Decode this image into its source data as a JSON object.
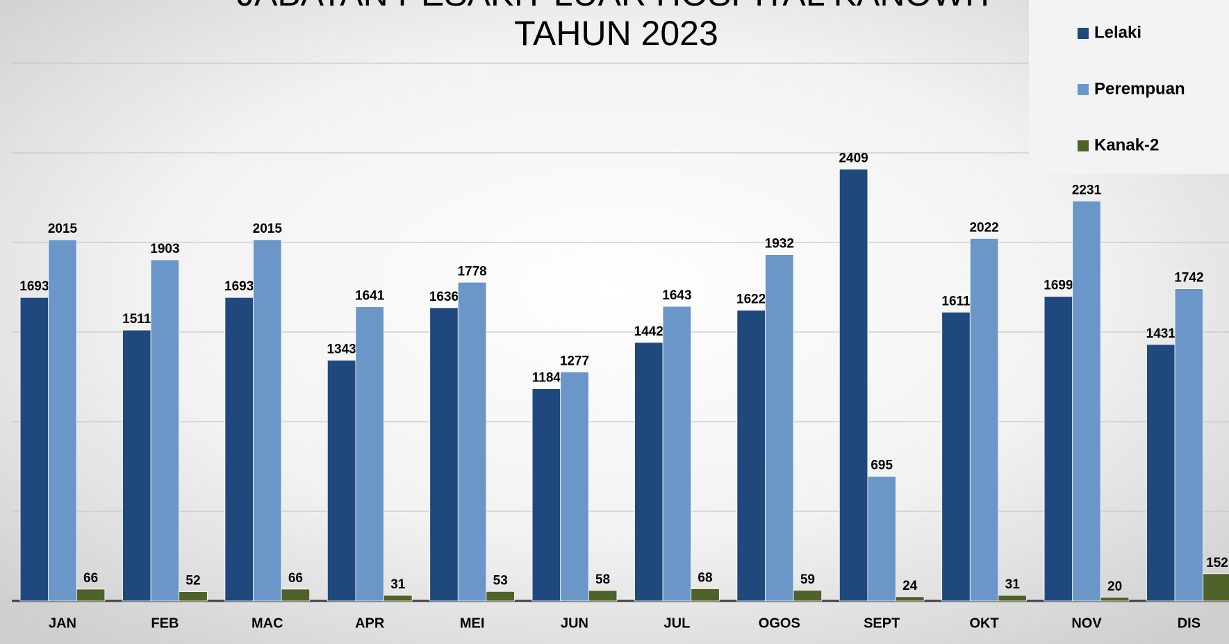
{
  "chart_data": {
    "type": "bar",
    "title": [
      "JABATAN PESAKIT LUAR HOSPITAL KANOWIT",
      "TAHUN  2023"
    ],
    "categories": [
      "JAN",
      "FEB",
      "MAC",
      "APR",
      "MEI",
      "JUN",
      "JUL",
      "OGOS",
      "SEPT",
      "OKT",
      "NOV",
      "DIS"
    ],
    "series": [
      {
        "name": "Lelaki",
        "color": "#1f497d",
        "values": [
          1693,
          1511,
          1693,
          1343,
          1636,
          1184,
          1442,
          1622,
          2409,
          1611,
          1699,
          1431
        ]
      },
      {
        "name": "Perempuan",
        "color": "#6a96c8",
        "values": [
          2015,
          1903,
          2015,
          1641,
          1778,
          1277,
          1643,
          1932,
          695,
          2022,
          2231,
          1742
        ]
      },
      {
        "name": "Kanak-2",
        "color": "#4f6228",
        "values": [
          66,
          52,
          66,
          31,
          53,
          58,
          68,
          59,
          24,
          31,
          20,
          152
        ]
      }
    ],
    "ylim": [
      0,
      3000
    ],
    "yticks": [
      0,
      500,
      1000,
      1500,
      2000,
      2500,
      3000
    ],
    "grid": true,
    "legend": "top-right"
  }
}
